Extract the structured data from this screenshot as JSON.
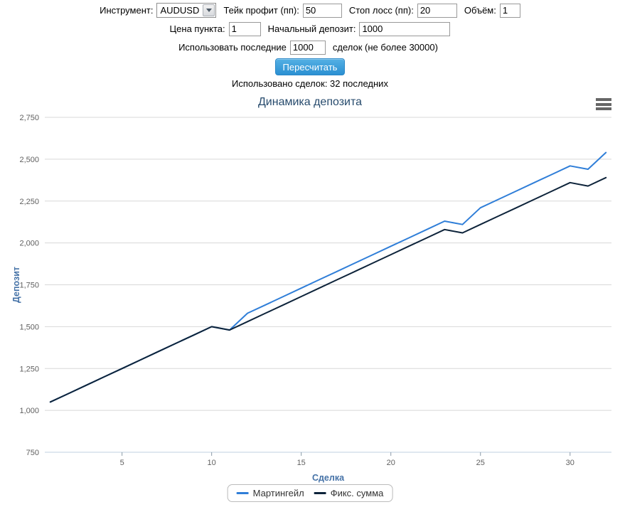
{
  "form": {
    "instrument_label": "Инструмент:",
    "instrument_value": "AUDUSD",
    "take_profit_label": "Тейк профит (пп):",
    "take_profit_value": "50",
    "stop_loss_label": "Стоп лосс (пп):",
    "stop_loss_value": "20",
    "volume_label": "Объём:",
    "volume_value": "1",
    "point_price_label": "Цена пункта:",
    "point_price_value": "1",
    "initial_deposit_label": "Начальный депозит:",
    "initial_deposit_value": "1000",
    "use_last_label": "Использовать последние",
    "use_last_value": "1000",
    "use_last_suffix": "сделок (не более 30000)",
    "recalc_button": "Пересчитать",
    "status": "Использовано сделок: 32 последних"
  },
  "chart": {
    "menu_icon": "hamburger-menu",
    "grid_color": "#d8d8d8",
    "axis_line_color": "#c0d0e0",
    "tick_label_color": "#606060",
    "axis_title_color": "#4572a7",
    "title_color": "#274b6d"
  },
  "chart_data": {
    "type": "line",
    "title": "Динамика депозита",
    "xlabel": "Сделка",
    "ylabel": "Депозит",
    "x": [
      1,
      2,
      3,
      4,
      5,
      6,
      7,
      8,
      9,
      10,
      11,
      12,
      13,
      14,
      15,
      16,
      17,
      18,
      19,
      20,
      21,
      22,
      23,
      24,
      25,
      26,
      27,
      28,
      29,
      30,
      31,
      32
    ],
    "series": [
      {
        "name": "Мартингейл",
        "color": "#2f7ed8",
        "values": [
          1050,
          1100,
          1150,
          1200,
          1250,
          1300,
          1350,
          1400,
          1450,
          1500,
          1480,
          1580,
          1630,
          1680,
          1730,
          1780,
          1830,
          1880,
          1930,
          1980,
          2030,
          2080,
          2130,
          2110,
          2210,
          2260,
          2310,
          2360,
          2410,
          2460,
          2440,
          2540
        ]
      },
      {
        "name": "Фикс. сумма",
        "color": "#0d233a",
        "values": [
          1050,
          1100,
          1150,
          1200,
          1250,
          1300,
          1350,
          1400,
          1450,
          1500,
          1480,
          1530,
          1580,
          1630,
          1680,
          1730,
          1780,
          1830,
          1880,
          1930,
          1980,
          2030,
          2080,
          2060,
          2110,
          2160,
          2210,
          2260,
          2310,
          2360,
          2340,
          2390
        ]
      }
    ],
    "xlim": [
      0.69,
      32.31
    ],
    "ylim": [
      750,
      2750
    ],
    "x_ticks": [
      5,
      10,
      15,
      20,
      25,
      30
    ],
    "y_tick_values": [
      750,
      1000,
      1250,
      1500,
      1750,
      2000,
      2250,
      2500,
      2750
    ],
    "y_tick_labels": [
      "750",
      "1,000",
      "1,250",
      "1,500",
      "1,750",
      "2,000",
      "2,250",
      "2,500",
      "2,750"
    ],
    "grid": true,
    "legend_position": "bottom"
  }
}
